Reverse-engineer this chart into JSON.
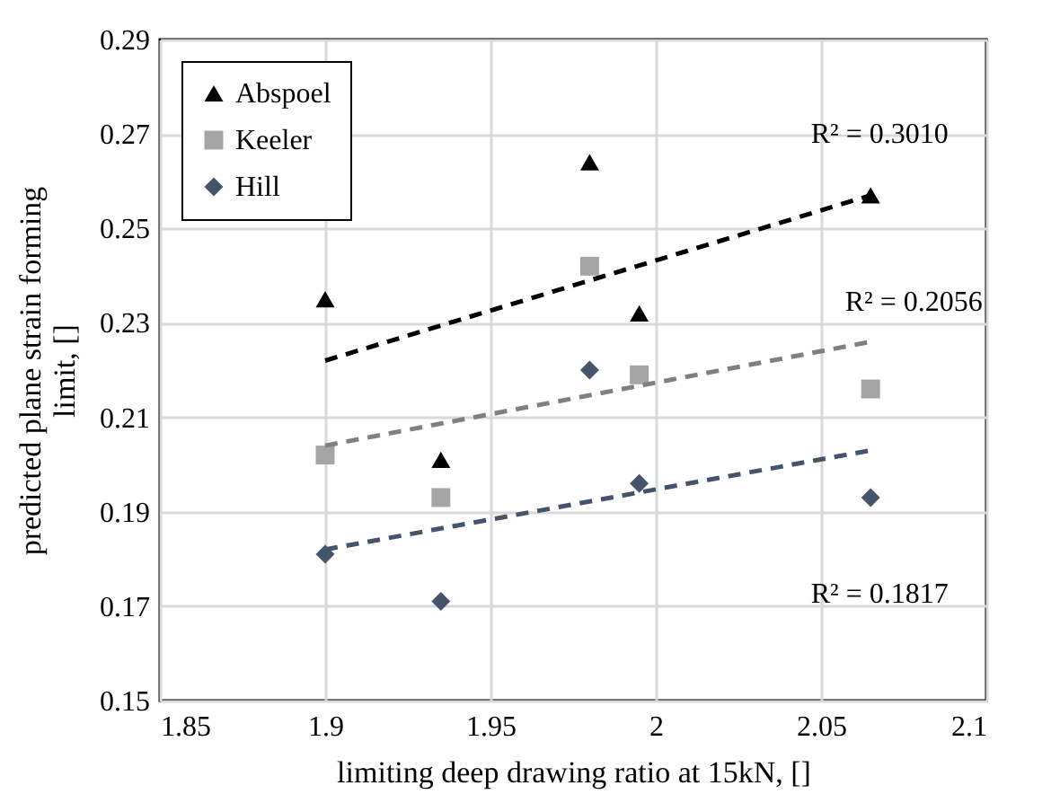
{
  "chart_data": {
    "type": "scatter",
    "xlabel": "limiting deep drawing ratio at 15kN, []",
    "ylabel": "predicted plane strain forming limit, []",
    "xlim": [
      1.85,
      2.1
    ],
    "xticks": [
      1.85,
      1.9,
      1.95,
      2,
      2.05,
      2.1
    ],
    "ylim": [
      0.15,
      0.29
    ],
    "yticks": [
      0.15,
      0.17,
      0.19,
      0.21,
      0.23,
      0.25,
      0.27,
      0.29
    ],
    "grid": true,
    "legend": "top left",
    "x": [
      1.9,
      1.935,
      1.98,
      1.995,
      2.065
    ],
    "series": [
      {
        "name": "Abspoel",
        "color": "#000000",
        "marker": "triangle",
        "values": [
          0.235,
          0.201,
          0.264,
          0.232,
          0.257
        ]
      },
      {
        "name": "Keeler",
        "color": "#a5a5a5",
        "marker": "square",
        "values": [
          0.202,
          0.193,
          0.242,
          0.219,
          0.216
        ]
      },
      {
        "name": "Hill",
        "color": "#44546a",
        "marker": "diamond",
        "values": [
          0.181,
          0.171,
          0.22,
          0.196,
          0.193
        ]
      },
      {
        "type": "line",
        "color": "#000000",
        "line_style": "dashed",
        "values": [
          0.222,
          null,
          null,
          null,
          0.257
        ]
      },
      {
        "type": "line",
        "color": "#808080",
        "line_style": "dashed",
        "values": [
          0.204,
          null,
          null,
          null,
          0.226
        ]
      },
      {
        "type": "line",
        "color": "#44546a",
        "line_style": "dashed",
        "values": [
          0.182,
          null,
          null,
          null,
          0.203
        ]
      }
    ],
    "annotations": [
      "R² = 0.3010",
      "R² = 0.2056",
      "R² = 0.1817"
    ]
  }
}
